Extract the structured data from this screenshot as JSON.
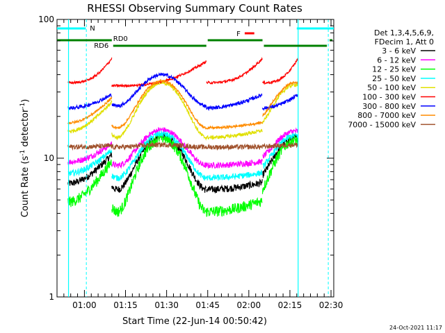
{
  "chart_data": {
    "type": "line",
    "title": "RHESSI Observing Summary Count Rates",
    "xlabel": "Start Time (22-Jun-14 00:50:42)",
    "ylabel": "Count Rate (s⁻¹ detector⁻¹)",
    "ylabel_main": "Count Rate (s",
    "ylabel_exp1": "-1",
    "ylabel_mid": " detector",
    "ylabel_exp2": "-1",
    "ylabel_end": ")",
    "yscale": "log",
    "ylim": [
      1,
      100
    ],
    "xlim_minutes_after_0050": [
      0,
      101
    ],
    "y_ticks": [
      {
        "label": "1",
        "value": 1
      },
      {
        "label": "10",
        "value": 10
      },
      {
        "label": "100",
        "value": 100
      }
    ],
    "x_ticks": [
      {
        "label": "01:00",
        "minute": 10
      },
      {
        "label": "01:15",
        "minute": 25
      },
      {
        "label": "01:30",
        "minute": 40
      },
      {
        "label": "01:45",
        "minute": 55
      },
      {
        "label": "02:00",
        "minute": 70
      },
      {
        "label": "02:15",
        "minute": 85
      },
      {
        "label": "02:30",
        "minute": 100
      }
    ],
    "legend_header": [
      "Det 1,3,4,5,6,9,",
      "FDecim 1, Att 0"
    ],
    "legend_placement": "right",
    "series": [
      {
        "name": "3 - 6 keV",
        "color": "#000000",
        "base": 5.5,
        "amp": 14.5,
        "scatter": 0.06
      },
      {
        "name": "6 - 12 keV",
        "color": "#ff00ff",
        "base": 8.5,
        "amp": 16,
        "scatter": 0.05
      },
      {
        "name": "12 - 25 keV",
        "color": "#00ff00",
        "base": 3.6,
        "amp": 14,
        "scatter": 0.09
      },
      {
        "name": "25 - 50 keV",
        "color": "#00ffff",
        "base": 6.8,
        "amp": 15,
        "scatter": 0.05
      },
      {
        "name": "50 - 100 keV",
        "color": "#e0e000",
        "base": 13,
        "amp": 35,
        "scatter": 0.03
      },
      {
        "name": "100 - 300 keV",
        "color": "#ff0000",
        "base": 35,
        "amp": 38,
        "scatter": 0.02
      },
      {
        "name": "300 - 800 keV",
        "color": "#0000ff",
        "base": 23,
        "amp": 40,
        "scatter": 0.03
      },
      {
        "name": "800 - 7000 keV",
        "color": "#ff8c00",
        "base": 15.5,
        "amp": 36,
        "scatter": 0.02
      },
      {
        "name": "7000 - 15000 keV",
        "color": "#a0522d",
        "base": 12,
        "amp": 12.5,
        "scatter": 0.04
      }
    ],
    "segments_minutes": [
      [
        4,
        20
      ],
      [
        20,
        54.5
      ],
      [
        54.5,
        75
      ],
      [
        75,
        88
      ]
    ],
    "annotations": {
      "night_label": "N",
      "flare_label": "F",
      "rd6_label": "RD6",
      "rd0_label": "RD0"
    },
    "flag_colors": {
      "night": "#00ffff",
      "flare": "#ff0000",
      "saa": "#008000"
    },
    "timestamp": "24-Oct-2021 11:17"
  }
}
